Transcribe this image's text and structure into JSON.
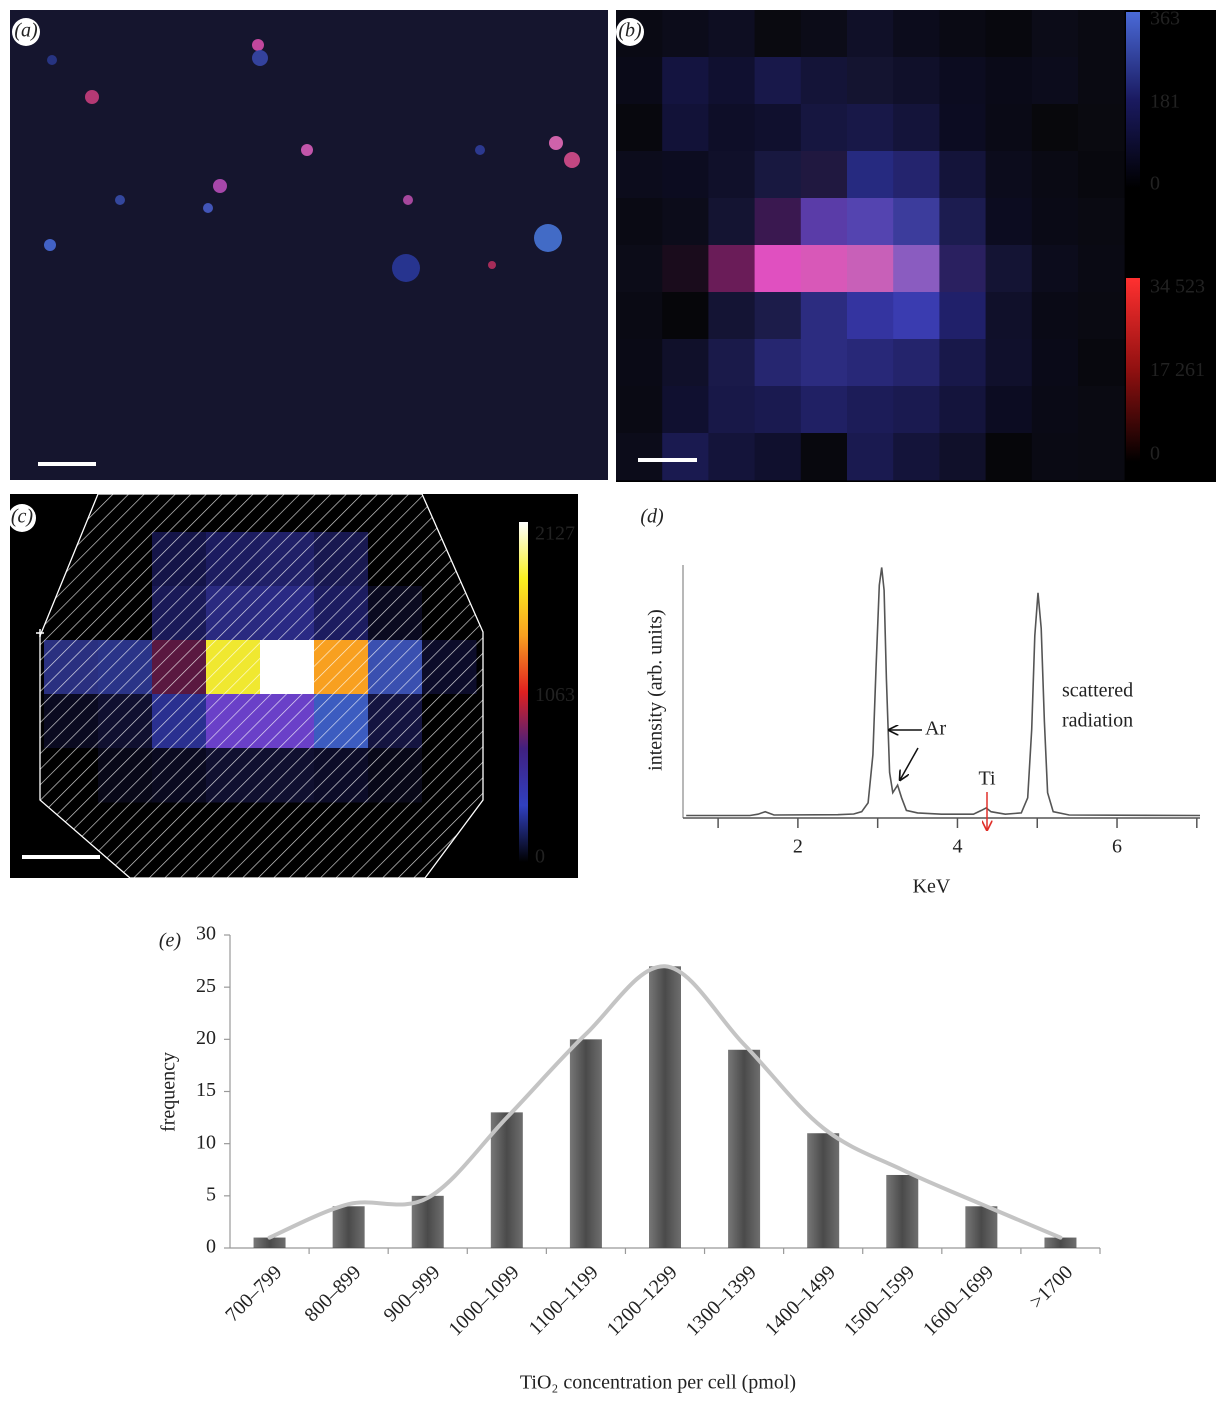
{
  "chart_data": [
    {
      "type": "image",
      "label": "(a)"
    },
    {
      "type": "image",
      "label": "(b)",
      "colorbars": [
        {
          "ylim": [
            0,
            363
          ],
          "yticks": [
            0,
            181,
            363
          ],
          "colors": [
            "#4a6ad8",
            "#1a1a60",
            "#000000"
          ]
        },
        {
          "ylim": [
            0,
            34523
          ],
          "yticks": [
            0,
            {
              "value": 17261,
              "label": "17 261"
            },
            {
              "value": 34523,
              "label": "34 523"
            }
          ],
          "colors": [
            "#ff3030",
            "#901010",
            "#000000"
          ]
        }
      ]
    },
    {
      "type": "heatmap",
      "label": "(c)",
      "colorbars": [
        {
          "ylim": [
            0,
            2127
          ],
          "yticks": [
            0,
            1063,
            2127
          ],
          "colors": [
            "#ffffff",
            "#f8f020",
            "#f8a020",
            "#e02020",
            "#402080",
            "#3040c0",
            "#000000"
          ]
        }
      ]
    },
    {
      "type": "line",
      "label": "(d)",
      "xlabel": "KeV",
      "ylabel": "intensity (arb. units)",
      "xlim": [
        0.56,
        7.04
      ],
      "ylim": [
        0,
        100
      ],
      "xticks": [
        2,
        4,
        6
      ],
      "xminorticks": [
        1,
        3,
        5,
        7
      ],
      "color": "#555555",
      "x": [
        0.6,
        1.4,
        1.5,
        1.59,
        1.7,
        2.5,
        2.7,
        2.8,
        2.88,
        2.94,
        2.98,
        3.02,
        3.05,
        3.08,
        3.11,
        3.15,
        3.19,
        3.25,
        3.3,
        3.36,
        3.5,
        3.8,
        4.2,
        4.3,
        4.36,
        4.42,
        4.6,
        4.8,
        4.88,
        4.93,
        4.97,
        5.01,
        5.05,
        5.09,
        5.13,
        5.2,
        5.4,
        7.04
      ],
      "values": [
        1,
        1,
        1.5,
        2.5,
        1.2,
        1.3,
        1.6,
        2.5,
        6,
        25,
        60,
        92,
        99,
        90,
        55,
        18,
        10,
        13,
        8,
        3,
        2,
        1.5,
        1.5,
        3,
        4,
        2.5,
        1.5,
        2,
        8,
        35,
        72,
        89,
        75,
        38,
        10,
        2.5,
        1.2,
        1
      ],
      "annotations": [
        {
          "lines": [
            "Ar"
          ],
          "color": "#111111"
        },
        {
          "lines": [
            "Ti"
          ],
          "color": "#e0302a"
        },
        {
          "lines": [
            "scattered",
            "radiation"
          ],
          "color": "#222222"
        }
      ]
    },
    {
      "type": "bar",
      "label": "(e)",
      "xlabel": "TiO₂ concentration per cell (pmol)",
      "ylabel": "frequency",
      "categories": [
        "700–799",
        "800–899",
        "900–999",
        "1000–1099",
        "1100–1199",
        "1200–1299",
        "1300–1399",
        "1400–1499",
        "1500–1599",
        "1600–1699",
        ">1700"
      ],
      "values": [
        1,
        4,
        5,
        13,
        20,
        27,
        19,
        11,
        7,
        4,
        1
      ],
      "color": "#4a4a4a",
      "trend": {
        "values": [
          1,
          4.2,
          4.8,
          12.5,
          20.5,
          27,
          19.5,
          11.5,
          7.5,
          4.2,
          1
        ],
        "color": "#c4c4c4"
      },
      "ylim": [
        0,
        30
      ],
      "yticks": [
        0,
        5,
        10,
        15,
        20,
        25,
        30
      ]
    }
  ]
}
